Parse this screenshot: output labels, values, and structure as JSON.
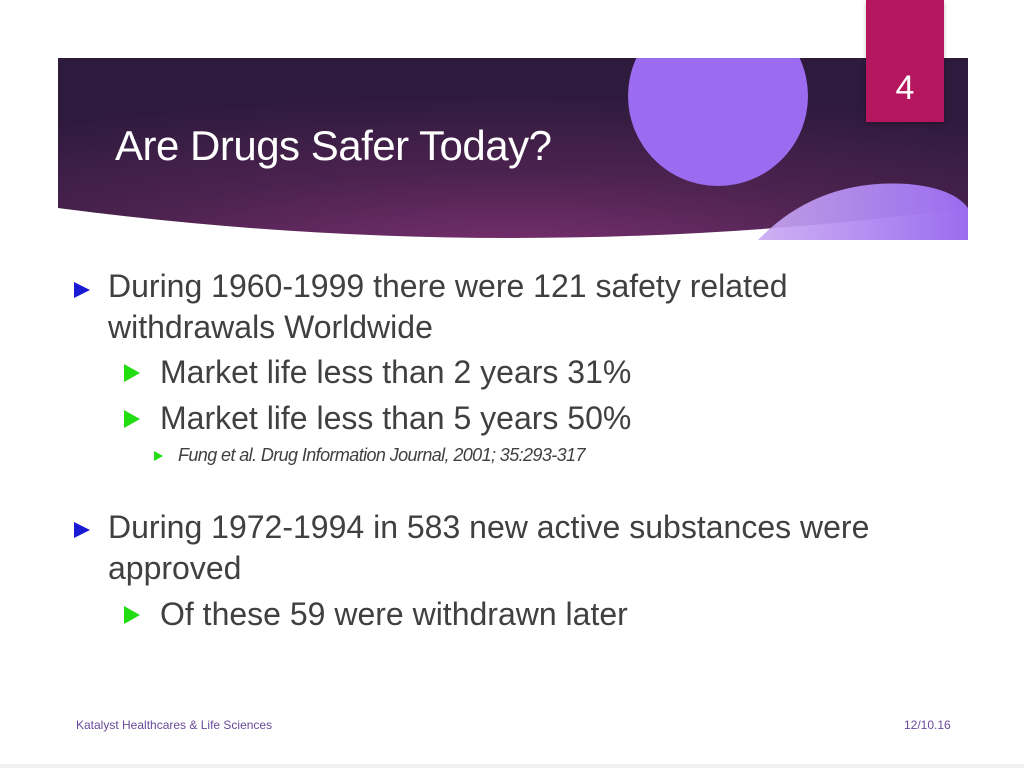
{
  "slide": {
    "title": "Are Drugs Safer Today?",
    "page_number": "4",
    "colors": {
      "banner_dark": "#2e1a3d",
      "banner_mid": "#6e2d62",
      "circle_purple": "#9b6cf0",
      "page_tab": "#b5175e",
      "bullet_level1": "#1a1ad6",
      "bullet_level2": "#22dd11",
      "text": "#404040",
      "footer_text": "#6a4a9a"
    }
  },
  "bullets": [
    {
      "line1": "During 1960-1999 there were 121 safety related",
      "line2": "withdrawals Worldwide",
      "sub": [
        {
          "text": "Market life less than 2 years 31%"
        },
        {
          "text": "Market life less than 5 years 50%"
        }
      ],
      "ref": "Fung et al. Drug Information Journal, 2001; 35:293-317"
    },
    {
      "line1": "During 1972-1994 in 583 new active substances were",
      "line2": "approved",
      "sub": [
        {
          "text": "Of these 59 were withdrawn later"
        }
      ]
    }
  ],
  "footer": {
    "company": "Katalyst Healthcares & Life Sciences",
    "date": "12/10.16"
  }
}
